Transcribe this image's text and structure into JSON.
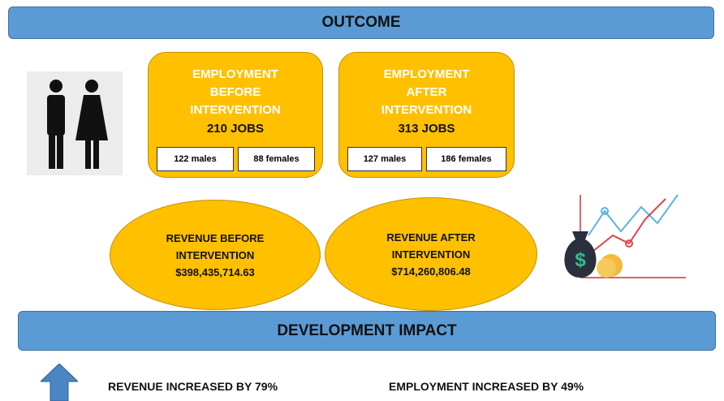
{
  "header": {
    "title": "OUTCOME"
  },
  "employment_before": {
    "lines": [
      "EMPLOYMENT",
      "BEFORE",
      "INTERVENTION"
    ],
    "jobs": "210 JOBS",
    "males": "122 males",
    "females": "88 females"
  },
  "employment_after": {
    "lines": [
      "EMPLOYMENT",
      "AFTER",
      "INTERVENTION"
    ],
    "jobs": "313 JOBS",
    "males": "127 males",
    "females": "186 females"
  },
  "revenue_before": {
    "lines": [
      "REVENUE BEFORE",
      "INTERVENTION"
    ],
    "amount": "$398,435,714.63"
  },
  "revenue_after": {
    "lines": [
      "REVENUE AFTER",
      "INTERVENTION"
    ],
    "amount": "$714,260,806.48"
  },
  "impact": {
    "title": "DEVELOPMENT IMPACT",
    "revenue": "REVENUE INCREASED BY 79%",
    "employment": "EMPLOYMENT INCREASED BY 49%"
  }
}
